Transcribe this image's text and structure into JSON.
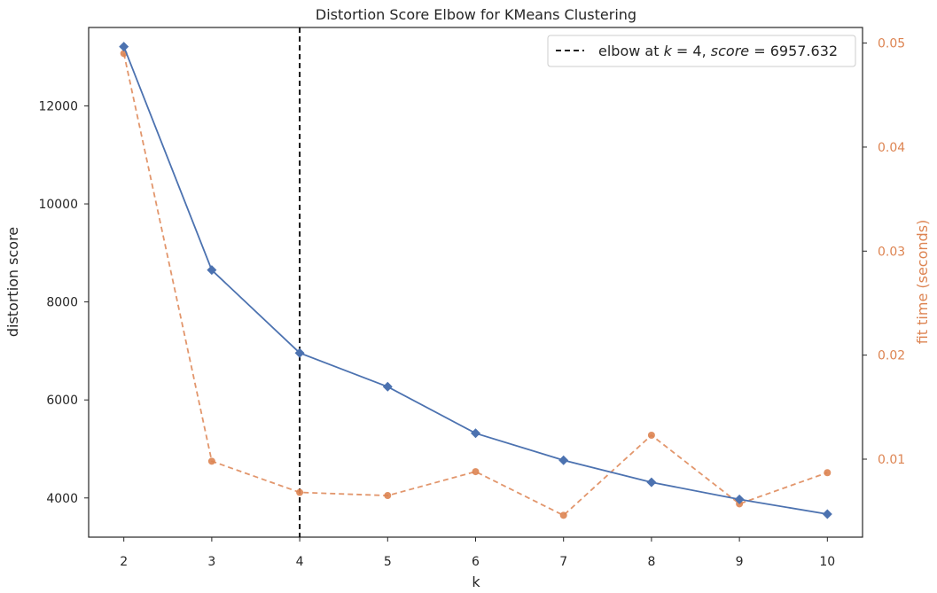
{
  "chart_data": {
    "type": "line",
    "title": "Distortion Score Elbow for KMeans Clustering",
    "xlabel": "k",
    "ylabel": "distortion score",
    "y2label": "fit time (seconds)",
    "x": [
      2,
      3,
      4,
      5,
      6,
      7,
      8,
      9,
      10
    ],
    "xlim": [
      1.6,
      10.4
    ],
    "ylim": [
      3200,
      13600
    ],
    "y2lim": [
      0.0025,
      0.0515
    ],
    "yticks": [
      "4000",
      "6000",
      "8000",
      "10000",
      "12000"
    ],
    "y2ticks": [
      "0.01",
      "0.02",
      "0.03",
      "0.04",
      "0.05"
    ],
    "xticks": [
      "2",
      "3",
      "4",
      "5",
      "6",
      "7",
      "8",
      "9",
      "10"
    ],
    "series": [
      {
        "axis": "left",
        "color": "#4c72b0",
        "marker": "diamond",
        "linestyle": "solid",
        "values": [
          13210,
          8650,
          6957.632,
          6270,
          5320,
          4770,
          4320,
          3970,
          3670
        ]
      },
      {
        "axis": "right",
        "color": "#dd8452",
        "marker": "circle",
        "linestyle": "dashed",
        "values": [
          0.049,
          0.0098,
          0.0068,
          0.0065,
          0.0088,
          0.0046,
          0.0123,
          0.0057,
          0.0087
        ]
      }
    ],
    "elbow": {
      "k": 4,
      "score": 6957.632,
      "color": "#000000"
    },
    "legend": {
      "position": "top-right",
      "prefix": "elbow at ",
      "k_var": "k",
      "eq1": " = 4, ",
      "score_var": "score",
      "eq2": " = 6957.632"
    },
    "grid": false
  }
}
